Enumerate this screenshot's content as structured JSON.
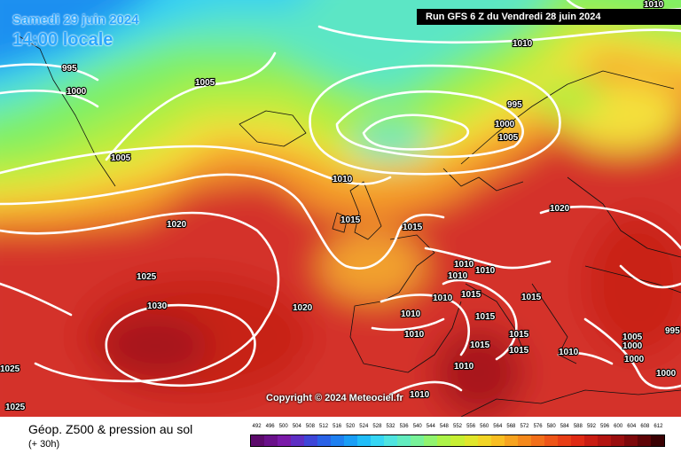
{
  "header": {
    "date": "Samedi 29 juin 2024",
    "time": "14:00 locale",
    "run": "Run GFS 6 Z du Vendredi 28 juin 2024"
  },
  "copyright": "Copyright © 2024 Meteociel.fr",
  "footer": {
    "title": "Géop. Z500 & pression au sol",
    "subtitle": "(+ 30h)"
  },
  "legend": {
    "labels": [
      "492",
      "496",
      "500",
      "504",
      "508",
      "512",
      "516",
      "520",
      "524",
      "528",
      "532",
      "536",
      "540",
      "544",
      "548",
      "552",
      "556",
      "560",
      "564",
      "568",
      "572",
      "576",
      "580",
      "584",
      "588",
      "592",
      "596",
      "600",
      "604",
      "608",
      "612"
    ],
    "colors": [
      "#5c0a6b",
      "#6a118a",
      "#7a1aa8",
      "#5e2fc4",
      "#3e46d8",
      "#2a62e6",
      "#1f80f0",
      "#1a9ef6",
      "#21bdf8",
      "#36d6f4",
      "#4fe4e0",
      "#62ecbf",
      "#78f299",
      "#91f46f",
      "#acf349",
      "#c7ef33",
      "#e0e62b",
      "#f2d526",
      "#f9be22",
      "#f7a31f",
      "#f5891c",
      "#f26f1a",
      "#ee5518",
      "#e83e16",
      "#df2a14",
      "#c91c12",
      "#b31410",
      "#9a0e0e",
      "#7d080a",
      "#5e0406",
      "#3a0103"
    ]
  },
  "isobar_labels": [
    {
      "text": "1010",
      "id": "1010-ne"
    },
    {
      "text": "1010",
      "id": "1010-n"
    },
    {
      "text": "995",
      "id": "995-w"
    },
    {
      "text": "1000",
      "id": "1000-w"
    },
    {
      "text": "1005",
      "id": "1005-ice"
    },
    {
      "text": "1005",
      "id": "1005-w"
    },
    {
      "text": "995",
      "id": "995-scan"
    },
    {
      "text": "1000",
      "id": "1000-scan"
    },
    {
      "text": "1005",
      "id": "1005-scan"
    },
    {
      "text": "1010",
      "id": "1010-uk"
    },
    {
      "text": "1015",
      "id": "1015-irl"
    },
    {
      "text": "1015",
      "id": "1015-uk"
    },
    {
      "text": "1020",
      "id": "1020-atl"
    },
    {
      "text": "1020",
      "id": "1020-east"
    },
    {
      "text": "1025",
      "id": "1025-atl"
    },
    {
      "text": "1030",
      "id": "1030-atl"
    },
    {
      "text": "1020",
      "id": "1020-bis"
    },
    {
      "text": "1010",
      "id": "1010-fr1"
    },
    {
      "text": "1010",
      "id": "1010-fr2"
    },
    {
      "text": "1010",
      "id": "1010-fr3"
    },
    {
      "text": "1015",
      "id": "1015-alps"
    },
    {
      "text": "1010",
      "id": "1010-sp1"
    },
    {
      "text": "1015",
      "id": "1015-it"
    },
    {
      "text": "1015",
      "id": "1015-bal"
    },
    {
      "text": "1010",
      "id": "1010-sp2"
    },
    {
      "text": "1015",
      "id": "1015-sard"
    },
    {
      "text": "1015",
      "id": "1015-ion"
    },
    {
      "text": "1010",
      "id": "1010-med"
    },
    {
      "text": "1010",
      "id": "1010-afr"
    },
    {
      "text": "1015",
      "id": "1015-bl"
    },
    {
      "text": "1010",
      "id": "1010-bl"
    },
    {
      "text": "1005",
      "id": "1005-e"
    },
    {
      "text": "995",
      "id": "995-e"
    },
    {
      "text": "1000",
      "id": "1000-e1"
    },
    {
      "text": "1000",
      "id": "1000-e2"
    },
    {
      "text": "1010",
      "id": "1010-gr"
    },
    {
      "text": "1000",
      "id": "1000-tr"
    },
    {
      "text": "1025",
      "id": "1025-sw"
    },
    {
      "text": "1025",
      "id": "1025-w"
    }
  ]
}
